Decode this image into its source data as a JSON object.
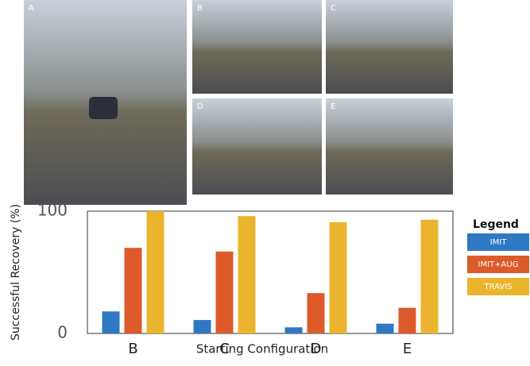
{
  "panels": [
    "A",
    "B",
    "C",
    "D",
    "E"
  ],
  "chart_data": {
    "type": "bar",
    "categories": [
      "B",
      "C",
      "D",
      "E"
    ],
    "series": [
      {
        "name": "IMIT",
        "color": "#2f78c4",
        "values": [
          18,
          11,
          5,
          8
        ]
      },
      {
        "name": "IMIT+AUG",
        "color": "#dd5a2b",
        "values": [
          70,
          67,
          33,
          21
        ]
      },
      {
        "name": "TRAVIS",
        "color": "#ebb42e",
        "values": [
          100,
          96,
          91,
          93
        ]
      }
    ],
    "ylim": [
      0,
      100
    ],
    "yticks": [
      0,
      100
    ],
    "y_label": "Successful Recovery (%)",
    "x_label": "Starting Configuration",
    "legend_title": "Legend",
    "legend_position": "right"
  }
}
